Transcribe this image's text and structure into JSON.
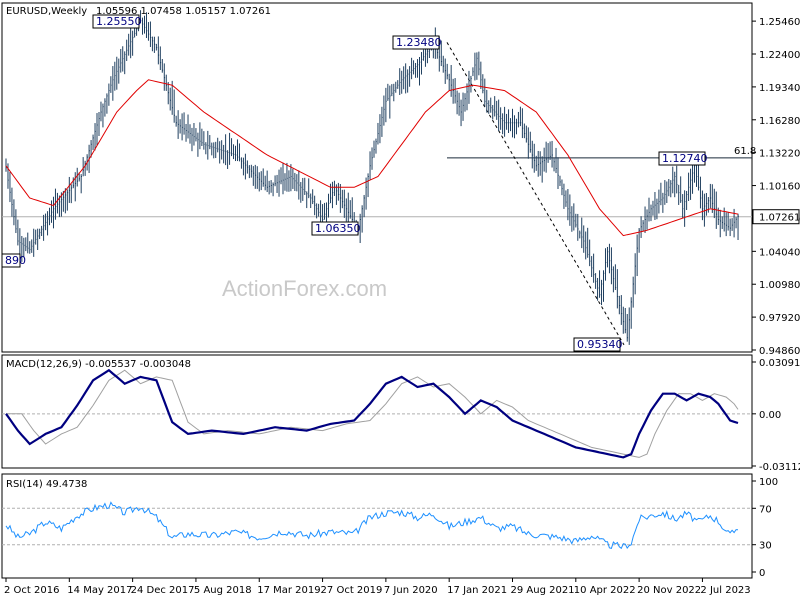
{
  "chart_data": [
    {
      "type": "candlestick",
      "title": "EURUSD,Weekly",
      "ohlc_label": "1.05596 1.07458 1.05157 1.07261",
      "yticks": [
        "1.25460",
        "1.22400",
        "1.19340",
        "1.16280",
        "1.13220",
        "1.10160",
        "1.07100",
        "1.04040",
        "1.00980",
        "0.97920",
        "0.94860"
      ],
      "ylim": [
        0.9486,
        1.2696
      ],
      "current_price": "1.07261",
      "current_price_value": 1.07261,
      "fib_label": "61.8",
      "fib_level": 1.1274,
      "annotations": [
        {
          "label": "1.25550",
          "value": 1.2555
        },
        {
          "label": "1.23480",
          "value": 1.2348
        },
        {
          "label": "1.12740",
          "value": 1.1274
        },
        {
          "label": "1.06350",
          "value": 1.0635
        },
        {
          "label": "0.95340",
          "value": 0.9534
        },
        {
          "label": "890",
          "value": 1.0389
        }
      ],
      "key_points": [
        {
          "t": 0,
          "v": 1.118
        },
        {
          "t": 3,
          "v": 1.05
        },
        {
          "t": 6,
          "v": 1.042
        },
        {
          "t": 12,
          "v": 1.08
        },
        {
          "t": 19,
          "v": 1.11
        },
        {
          "t": 24,
          "v": 1.17
        },
        {
          "t": 27,
          "v": 1.2
        },
        {
          "t": 34,
          "v": 1.255
        },
        {
          "t": 38,
          "v": 1.23
        },
        {
          "t": 43,
          "v": 1.16
        },
        {
          "t": 50,
          "v": 1.14
        },
        {
          "t": 58,
          "v": 1.13
        },
        {
          "t": 66,
          "v": 1.1
        },
        {
          "t": 72,
          "v": 1.11
        },
        {
          "t": 77,
          "v": 1.09
        },
        {
          "t": 80,
          "v": 1.07
        },
        {
          "t": 83,
          "v": 1.1
        },
        {
          "t": 86,
          "v": 1.08
        },
        {
          "t": 89,
          "v": 1.06
        },
        {
          "t": 92,
          "v": 1.12
        },
        {
          "t": 96,
          "v": 1.18
        },
        {
          "t": 100,
          "v": 1.2
        },
        {
          "t": 104,
          "v": 1.214
        },
        {
          "t": 108,
          "v": 1.234
        },
        {
          "t": 112,
          "v": 1.2
        },
        {
          "t": 115,
          "v": 1.17
        },
        {
          "t": 119,
          "v": 1.22
        },
        {
          "t": 121,
          "v": 1.18
        },
        {
          "t": 126,
          "v": 1.16
        },
        {
          "t": 130,
          "v": 1.16
        },
        {
          "t": 134,
          "v": 1.12
        },
        {
          "t": 138,
          "v": 1.13
        },
        {
          "t": 142,
          "v": 1.08
        },
        {
          "t": 146,
          "v": 1.05
        },
        {
          "t": 150,
          "v": 1.0
        },
        {
          "t": 152,
          "v": 1.04
        },
        {
          "t": 155,
          "v": 0.99
        },
        {
          "t": 157,
          "v": 0.96
        },
        {
          "t": 160,
          "v": 1.06
        },
        {
          "t": 163,
          "v": 1.08
        },
        {
          "t": 166,
          "v": 1.09
        },
        {
          "t": 169,
          "v": 1.11
        },
        {
          "t": 171,
          "v": 1.08
        },
        {
          "t": 174,
          "v": 1.12
        },
        {
          "t": 176,
          "v": 1.08
        },
        {
          "t": 178,
          "v": 1.09
        },
        {
          "t": 180,
          "v": 1.07
        },
        {
          "t": 183,
          "v": 1.062
        },
        {
          "t": 185,
          "v": 1.073
        }
      ],
      "ma_points": [
        {
          "t": 0,
          "v": 1.12
        },
        {
          "t": 6,
          "v": 1.09
        },
        {
          "t": 12,
          "v": 1.083
        },
        {
          "t": 20,
          "v": 1.12
        },
        {
          "t": 28,
          "v": 1.17
        },
        {
          "t": 33,
          "v": 1.19
        },
        {
          "t": 36,
          "v": 1.2
        },
        {
          "t": 42,
          "v": 1.195
        },
        {
          "t": 50,
          "v": 1.17
        },
        {
          "t": 58,
          "v": 1.15
        },
        {
          "t": 66,
          "v": 1.13
        },
        {
          "t": 74,
          "v": 1.115
        },
        {
          "t": 82,
          "v": 1.1
        },
        {
          "t": 88,
          "v": 1.1
        },
        {
          "t": 94,
          "v": 1.11
        },
        {
          "t": 100,
          "v": 1.14
        },
        {
          "t": 106,
          "v": 1.17
        },
        {
          "t": 112,
          "v": 1.19
        },
        {
          "t": 118,
          "v": 1.195
        },
        {
          "t": 126,
          "v": 1.19
        },
        {
          "t": 134,
          "v": 1.17
        },
        {
          "t": 142,
          "v": 1.13
        },
        {
          "t": 150,
          "v": 1.08
        },
        {
          "t": 156,
          "v": 1.055
        },
        {
          "t": 162,
          "v": 1.06
        },
        {
          "t": 170,
          "v": 1.07
        },
        {
          "t": 178,
          "v": 1.08
        },
        {
          "t": 185,
          "v": 1.075
        }
      ]
    },
    {
      "type": "line",
      "title": "MACD(12,26,9) -0.005537 -0.003048",
      "yticks": [
        "0.030916",
        "0.00",
        "-0.031124"
      ],
      "ylim": [
        -0.031124,
        0.030916
      ],
      "macd_points": [
        {
          "t": 0,
          "v": 0.0
        },
        {
          "t": 3,
          "v": -0.01
        },
        {
          "t": 6,
          "v": -0.018
        },
        {
          "t": 10,
          "v": -0.012
        },
        {
          "t": 14,
          "v": -0.008
        },
        {
          "t": 18,
          "v": 0.005
        },
        {
          "t": 22,
          "v": 0.02
        },
        {
          "t": 26,
          "v": 0.026
        },
        {
          "t": 30,
          "v": 0.018
        },
        {
          "t": 34,
          "v": 0.022
        },
        {
          "t": 38,
          "v": 0.02
        },
        {
          "t": 42,
          "v": -0.005
        },
        {
          "t": 46,
          "v": -0.012
        },
        {
          "t": 52,
          "v": -0.01
        },
        {
          "t": 60,
          "v": -0.012
        },
        {
          "t": 68,
          "v": -0.008
        },
        {
          "t": 76,
          "v": -0.01
        },
        {
          "t": 82,
          "v": -0.006
        },
        {
          "t": 88,
          "v": -0.004
        },
        {
          "t": 92,
          "v": 0.006
        },
        {
          "t": 96,
          "v": 0.018
        },
        {
          "t": 100,
          "v": 0.022
        },
        {
          "t": 104,
          "v": 0.016
        },
        {
          "t": 108,
          "v": 0.018
        },
        {
          "t": 112,
          "v": 0.01
        },
        {
          "t": 116,
          "v": 0.0
        },
        {
          "t": 120,
          "v": 0.008
        },
        {
          "t": 124,
          "v": 0.004
        },
        {
          "t": 128,
          "v": -0.004
        },
        {
          "t": 132,
          "v": -0.008
        },
        {
          "t": 136,
          "v": -0.012
        },
        {
          "t": 140,
          "v": -0.016
        },
        {
          "t": 144,
          "v": -0.02
        },
        {
          "t": 148,
          "v": -0.022
        },
        {
          "t": 152,
          "v": -0.024
        },
        {
          "t": 156,
          "v": -0.026
        },
        {
          "t": 158,
          "v": -0.024
        },
        {
          "t": 160,
          "v": -0.012
        },
        {
          "t": 163,
          "v": 0.002
        },
        {
          "t": 166,
          "v": 0.012
        },
        {
          "t": 169,
          "v": 0.012
        },
        {
          "t": 172,
          "v": 0.008
        },
        {
          "t": 175,
          "v": 0.012
        },
        {
          "t": 178,
          "v": 0.01
        },
        {
          "t": 180,
          "v": 0.006
        },
        {
          "t": 183,
          "v": -0.004
        },
        {
          "t": 185,
          "v": -0.0055
        }
      ]
    },
    {
      "type": "line",
      "title": "RSI(14) 49.4738",
      "yticks": [
        "100",
        "70",
        "30",
        "0"
      ],
      "ylim": [
        0,
        100
      ],
      "levels": [
        70,
        30
      ],
      "rsi_points": [
        {
          "t": 0,
          "v": 52
        },
        {
          "t": 3,
          "v": 38
        },
        {
          "t": 6,
          "v": 42
        },
        {
          "t": 10,
          "v": 55
        },
        {
          "t": 14,
          "v": 48
        },
        {
          "t": 18,
          "v": 62
        },
        {
          "t": 22,
          "v": 70
        },
        {
          "t": 26,
          "v": 74
        },
        {
          "t": 30,
          "v": 65
        },
        {
          "t": 34,
          "v": 72
        },
        {
          "t": 38,
          "v": 60
        },
        {
          "t": 42,
          "v": 38
        },
        {
          "t": 46,
          "v": 42
        },
        {
          "t": 52,
          "v": 40
        },
        {
          "t": 58,
          "v": 44
        },
        {
          "t": 64,
          "v": 38
        },
        {
          "t": 70,
          "v": 45
        },
        {
          "t": 76,
          "v": 40
        },
        {
          "t": 82,
          "v": 44
        },
        {
          "t": 88,
          "v": 42
        },
        {
          "t": 92,
          "v": 60
        },
        {
          "t": 96,
          "v": 65
        },
        {
          "t": 100,
          "v": 66
        },
        {
          "t": 104,
          "v": 60
        },
        {
          "t": 108,
          "v": 64
        },
        {
          "t": 112,
          "v": 50
        },
        {
          "t": 116,
          "v": 55
        },
        {
          "t": 120,
          "v": 60
        },
        {
          "t": 124,
          "v": 48
        },
        {
          "t": 128,
          "v": 50
        },
        {
          "t": 132,
          "v": 42
        },
        {
          "t": 136,
          "v": 40
        },
        {
          "t": 140,
          "v": 38
        },
        {
          "t": 144,
          "v": 34
        },
        {
          "t": 148,
          "v": 40
        },
        {
          "t": 152,
          "v": 30
        },
        {
          "t": 156,
          "v": 28
        },
        {
          "t": 158,
          "v": 32
        },
        {
          "t": 160,
          "v": 58
        },
        {
          "t": 163,
          "v": 62
        },
        {
          "t": 166,
          "v": 65
        },
        {
          "t": 169,
          "v": 58
        },
        {
          "t": 172,
          "v": 64
        },
        {
          "t": 175,
          "v": 55
        },
        {
          "t": 178,
          "v": 62
        },
        {
          "t": 180,
          "v": 56
        },
        {
          "t": 183,
          "v": 40
        },
        {
          "t": 185,
          "v": 49
        }
      ]
    }
  ],
  "xticks": [
    {
      "t": 0,
      "label": "2 Oct 2016"
    },
    {
      "t": 32,
      "label": "14 May 2017"
    },
    {
      "t": 64,
      "label": "24 Dec 2017"
    },
    {
      "t": 96,
      "label": "5 Aug 2018"
    },
    {
      "t": 128,
      "label": "17 Mar 2019"
    },
    {
      "t": 160,
      "label": "27 Oct 2019"
    },
    {
      "t": 192,
      "label": "7 Jun 2020"
    },
    {
      "t": 224,
      "label": "17 Jan 2021"
    },
    {
      "t": 256,
      "label": "29 Aug 2021"
    },
    {
      "t": 288,
      "label": "10 Apr 2022"
    },
    {
      "t": 320,
      "label": "20 Nov 2022"
    },
    {
      "t": 352,
      "label": "2 Jul 2023"
    }
  ],
  "watermark": "ActionForex.com",
  "colors": {
    "candle": "#1f3f5f",
    "ma": "#e00000",
    "macd": "#000080",
    "signal": "#a0a0a0",
    "rsi": "#1e90ff",
    "annotation_text": "#000080"
  }
}
